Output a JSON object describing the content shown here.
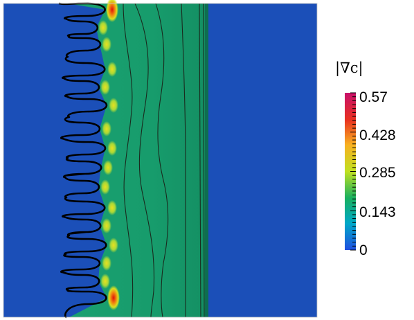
{
  "figure": {
    "colorbar": {
      "title": "|∇c|",
      "ticks": [
        "0.57",
        "0.428",
        "0.285",
        "0.143",
        "0"
      ],
      "range": [
        0,
        0.57
      ],
      "colormap": [
        "#1f4fe0",
        "#00b0b0",
        "#20c050",
        "#d8e820",
        "#f8a020",
        "#e82030",
        "#c8106a"
      ]
    },
    "colors": {
      "background": "#ffffff",
      "blue_region": "#1b4fb8",
      "green_region": "#159b6c",
      "interface": "#000000",
      "hotspot": "#d4180a"
    }
  }
}
